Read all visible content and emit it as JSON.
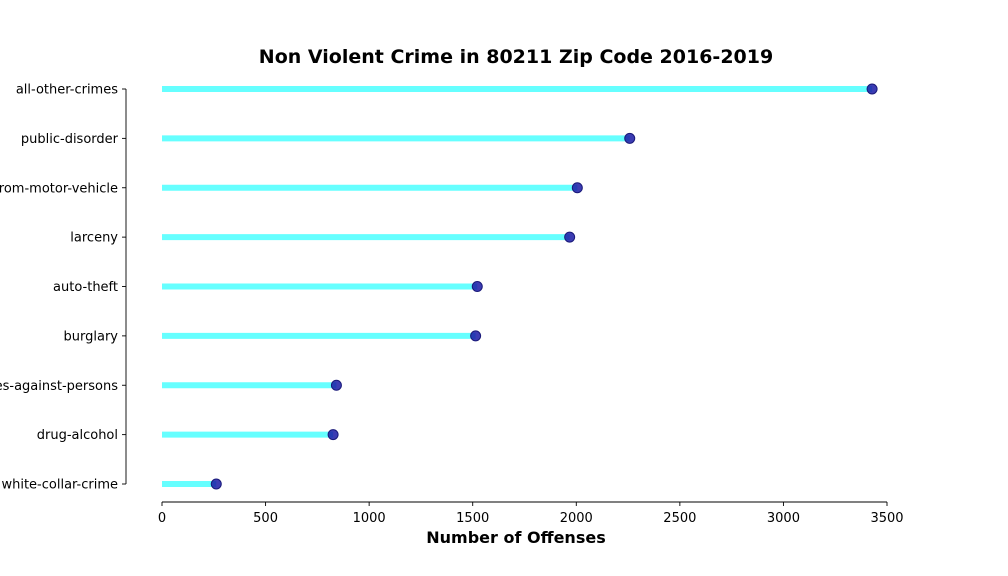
{
  "chart_data": {
    "type": "lollipop",
    "title": "Non Violent Crime in 80211 Zip Code 2016-2019",
    "xlabel": "Number of Offenses",
    "ylabel": "",
    "categories": [
      "all-other-crimes",
      "public-disorder",
      "theft-from-motor-vehicle",
      "larceny",
      "auto-theft",
      "burglary",
      "other-crimes-against-persons",
      "drug-alcohol",
      "white-collar-crime"
    ],
    "values": [
      3428,
      2258,
      2005,
      1968,
      1522,
      1514,
      842,
      826,
      262
    ],
    "xlim": [
      0,
      3500
    ],
    "xticks": [
      0,
      500,
      1000,
      1500,
      2000,
      2500,
      3000,
      3500
    ],
    "grid": false,
    "colors": {
      "stem": "#00ffff",
      "dot": "#1a1aa6"
    }
  }
}
